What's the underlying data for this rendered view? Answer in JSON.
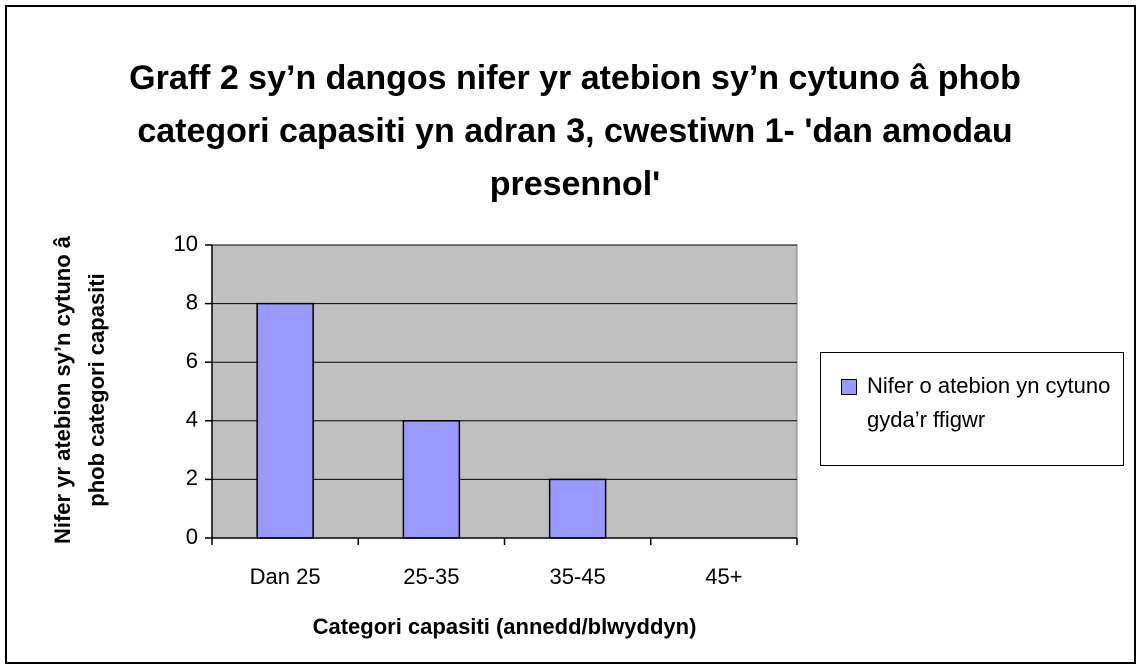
{
  "chart_data": {
    "type": "bar",
    "title": "Graff 2 sy’n dangos nifer yr atebion sy’n cytuno â phob categori capasiti yn adran 3, cwestiwn 1- 'dan amodau presennol'",
    "x_label": "Categori capasiti (annedd/blwyddyn)",
    "y_label": "Nifer yr atebion sy’n cytuno â phob categori capasiti",
    "categories": [
      "Dan 25",
      "25-35",
      "35-45",
      "45+"
    ],
    "series": [
      {
        "name": "Nifer o atebion yn cytuno gyda’r ffigwr",
        "color": "#9999ff",
        "values": [
          8,
          4,
          2,
          0
        ]
      }
    ],
    "ylim": [
      0,
      10
    ],
    "yticks": [
      0,
      2,
      4,
      6,
      8,
      10
    ],
    "grid": true,
    "legend": "right"
  }
}
